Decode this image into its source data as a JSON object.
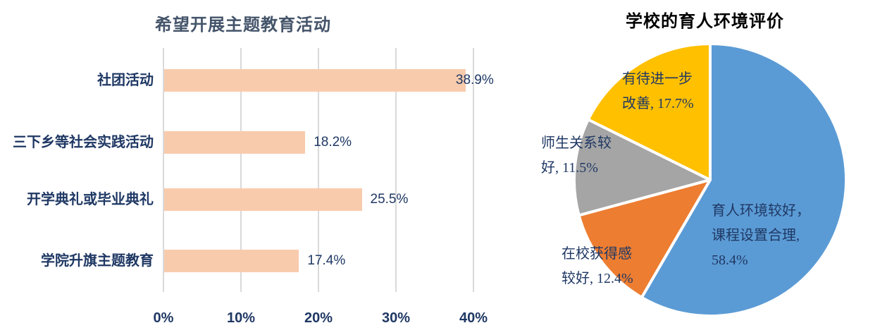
{
  "chart_data": [
    {
      "type": "bar",
      "orientation": "horizontal",
      "title": "希望开展主题教育活动",
      "categories": [
        "社团活动",
        "三下乡等社会实践活动",
        "开学典礼或毕业典礼",
        "学院升旗主题教育"
      ],
      "values": [
        38.9,
        18.2,
        25.5,
        17.4
      ],
      "value_labels": [
        "38.9%",
        "18.2%",
        "25.5%",
        "17.4%"
      ],
      "x_ticks": [
        "0%",
        "10%",
        "20%",
        "30%",
        "40%"
      ],
      "xlim": [
        0,
        40
      ],
      "grid": true,
      "legend": false,
      "bar_color": "#F8CBAD",
      "text_color": "#1F3864",
      "title_color": "#44546A",
      "gridline_color": "#D9D9D9"
    },
    {
      "type": "pie",
      "title": "学校的育人环境评价",
      "title_color": "#000000",
      "label_color": "#1F3864",
      "start_angle_deg": 0,
      "direction": "clockwise",
      "slices": [
        {
          "label": "育人环境较好，课程设置合理",
          "value": 58.4,
          "color": "#5B9BD5",
          "label_lines": [
            "育人环境较好，",
            "课程设置合理,",
            "58.4%"
          ]
        },
        {
          "label": "在校获得感较好",
          "value": 12.4,
          "color": "#ED7D31",
          "label_lines": [
            "在校获得感",
            "较好, 12.4%"
          ]
        },
        {
          "label": "师生关系较好",
          "value": 11.5,
          "color": "#A5A5A5",
          "label_lines": [
            "师生关系较",
            "好, 11.5%"
          ]
        },
        {
          "label": "有待进一步改善",
          "value": 17.7,
          "color": "#FFC000",
          "label_lines": [
            "有待进一步",
            "改善, 17.7%"
          ]
        }
      ]
    }
  ]
}
